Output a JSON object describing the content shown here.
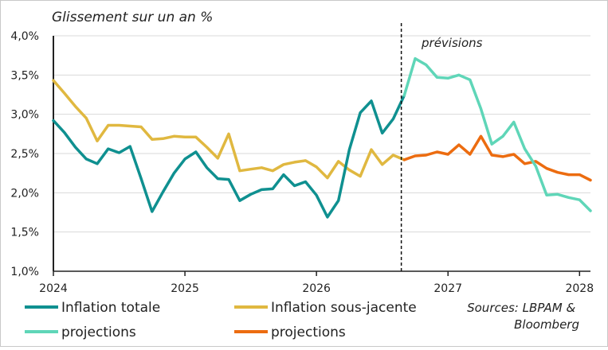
{
  "chart_data": {
    "type": "line",
    "title": "Glissement sur un an %",
    "xlabel": "",
    "ylabel": "",
    "ylim": [
      1.0,
      4.0
    ],
    "yticks": [
      "4,0%",
      "3,5%",
      "3,0%",
      "2,5%",
      "2,0%",
      "1,5%",
      "1,0%"
    ],
    "xticks": [
      "2024",
      "2025",
      "2026",
      "2027",
      "2028"
    ],
    "forecast_label": "prévisions",
    "forecast_start": 2026.645,
    "grid": true,
    "legend_position": "bottom",
    "source": "Sources: LBPAM & Bloomberg",
    "colors": {
      "total": "#0f9090",
      "core": "#e0b840",
      "proj_total": "#5fd6b8",
      "proj_core": "#ec6c10",
      "grid": "#d9d9d9",
      "axis": "#222222"
    },
    "series": [
      {
        "name": "Inflation totale",
        "color": "#0f9090",
        "x": [
          2024.0,
          2024.083,
          2024.167,
          2024.25,
          2024.333,
          2024.417,
          2024.5,
          2024.583,
          2024.667,
          2024.75,
          2024.833,
          2024.917,
          2025.0,
          2025.083,
          2025.167,
          2025.25,
          2025.333,
          2025.417,
          2025.5,
          2025.583,
          2025.667,
          2025.75,
          2025.833,
          2025.917,
          2026.0,
          2026.083,
          2026.167,
          2026.25,
          2026.333,
          2026.417,
          2026.5,
          2026.583,
          2026.667
        ],
        "values": [
          2.92,
          2.77,
          2.58,
          2.43,
          2.37,
          2.56,
          2.51,
          2.59,
          2.18,
          1.76,
          2.01,
          2.25,
          2.43,
          2.52,
          2.32,
          2.18,
          2.17,
          1.9,
          1.98,
          2.04,
          2.05,
          2.23,
          2.09,
          2.14,
          1.97,
          1.69,
          1.9,
          2.55,
          3.02,
          3.17,
          2.76,
          2.94,
          3.24
        ]
      },
      {
        "name": "Inflation sous-jacente",
        "color": "#e0b840",
        "x": [
          2024.0,
          2024.083,
          2024.167,
          2024.25,
          2024.333,
          2024.417,
          2024.5,
          2024.583,
          2024.667,
          2024.75,
          2024.833,
          2024.917,
          2025.0,
          2025.083,
          2025.167,
          2025.25,
          2025.333,
          2025.417,
          2025.5,
          2025.583,
          2025.667,
          2025.75,
          2025.833,
          2025.917,
          2026.0,
          2026.083,
          2026.167,
          2026.25,
          2026.333,
          2026.417,
          2026.5,
          2026.583,
          2026.667
        ],
        "values": [
          3.43,
          3.27,
          3.1,
          2.95,
          2.66,
          2.86,
          2.86,
          2.85,
          2.84,
          2.68,
          2.69,
          2.72,
          2.71,
          2.71,
          2.58,
          2.44,
          2.75,
          2.28,
          2.3,
          2.32,
          2.28,
          2.36,
          2.39,
          2.41,
          2.33,
          2.19,
          2.4,
          2.29,
          2.21,
          2.55,
          2.36,
          2.48,
          2.42
        ]
      },
      {
        "name": "projections",
        "color": "#5fd6b8",
        "x": [
          2026.667,
          2026.75,
          2026.833,
          2026.917,
          2027.0,
          2027.083,
          2027.167,
          2027.25,
          2027.333,
          2027.417,
          2027.5,
          2027.583,
          2027.667,
          2027.75,
          2027.833,
          2027.917,
          2028.0,
          2028.083
        ],
        "values": [
          3.24,
          3.71,
          3.63,
          3.47,
          3.46,
          3.5,
          3.44,
          3.07,
          2.62,
          2.72,
          2.9,
          2.56,
          2.34,
          1.97,
          1.98,
          1.94,
          1.91,
          1.77
        ]
      },
      {
        "name": "projections",
        "color": "#ec6c10",
        "x": [
          2026.667,
          2026.75,
          2026.833,
          2026.917,
          2027.0,
          2027.083,
          2027.167,
          2027.25,
          2027.333,
          2027.417,
          2027.5,
          2027.583,
          2027.667,
          2027.75,
          2027.833,
          2027.917,
          2028.0,
          2028.083
        ],
        "values": [
          2.42,
          2.47,
          2.48,
          2.52,
          2.49,
          2.61,
          2.49,
          2.72,
          2.48,
          2.46,
          2.49,
          2.37,
          2.4,
          2.31,
          2.26,
          2.23,
          2.23,
          2.16
        ]
      }
    ]
  }
}
